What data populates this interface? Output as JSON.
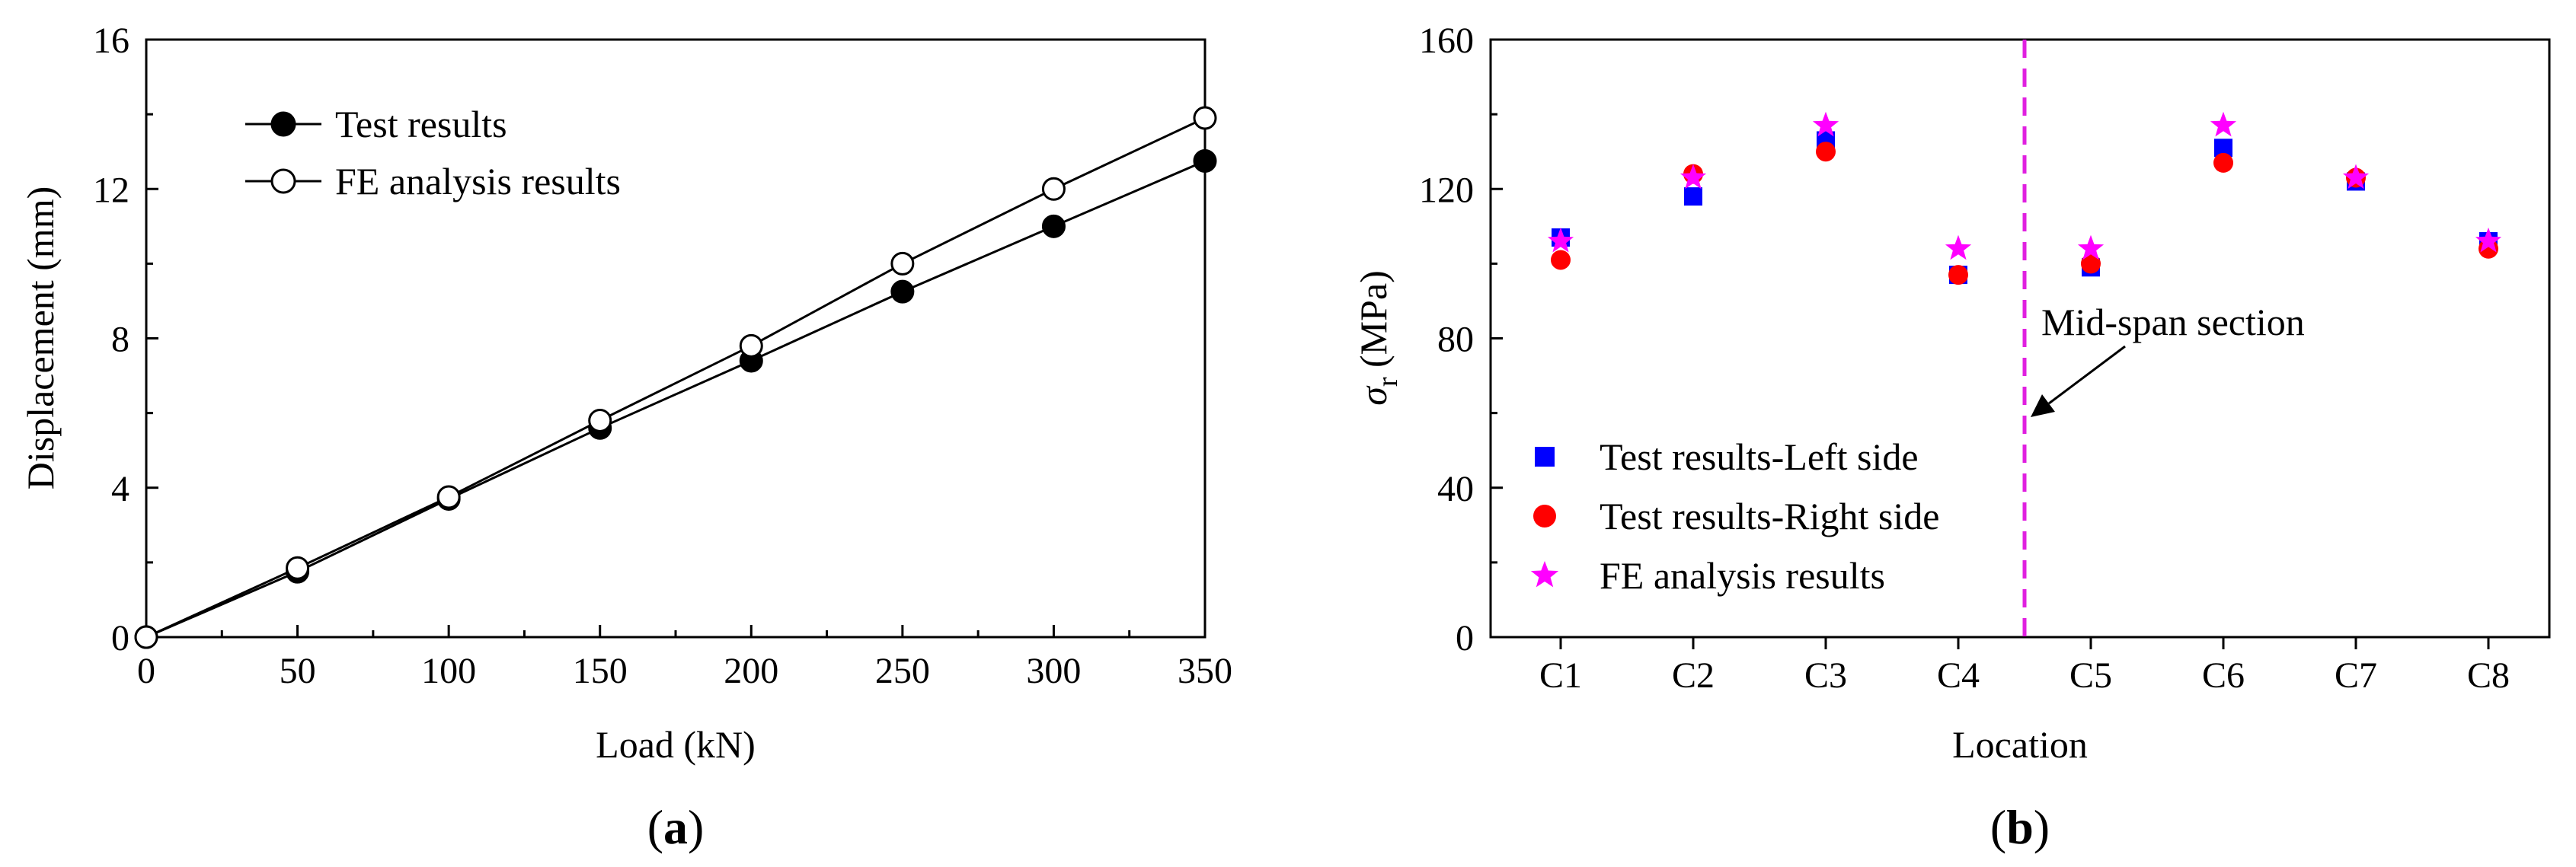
{
  "chart_data": [
    {
      "type": "line",
      "panel_label": {
        "open": "(",
        "letter": "a",
        "close": ")"
      },
      "xlabel": "Load (kN)",
      "ylabel": "Displacement (mm)",
      "xlim": [
        0,
        350
      ],
      "ylim": [
        0,
        16
      ],
      "xticks": [
        0,
        50,
        100,
        150,
        200,
        250,
        300,
        350
      ],
      "yticks": [
        0,
        4,
        8,
        12,
        16
      ],
      "legend_position": "top-left",
      "series": [
        {
          "name": "Test results",
          "marker": "filled-circle",
          "color": "#000000",
          "x": [
            0,
            50,
            100,
            150,
            200,
            250,
            300,
            350
          ],
          "y": [
            0,
            1.75,
            3.7,
            5.6,
            7.4,
            9.25,
            11.0,
            12.75
          ]
        },
        {
          "name": "FE analysis results",
          "marker": "open-circle",
          "color": "#000000",
          "x": [
            0,
            50,
            100,
            150,
            200,
            250,
            300,
            350
          ],
          "y": [
            0,
            1.85,
            3.75,
            5.8,
            7.8,
            10.0,
            12.0,
            13.9
          ]
        }
      ]
    },
    {
      "type": "scatter",
      "panel_label": {
        "open": "(",
        "letter": "b",
        "close": ")"
      },
      "xlabel": "Location",
      "ylabel_symbol": "σ",
      "ylabel_subscript": "r",
      "ylabel_unit": " (MPa)",
      "ylim": [
        0,
        160
      ],
      "yticks": [
        0,
        40,
        80,
        120,
        160
      ],
      "categories": [
        "C1",
        "C2",
        "C3",
        "C4",
        "C5",
        "C6",
        "C7",
        "C8"
      ],
      "legend_position": "bottom-left",
      "series": [
        {
          "name": "Test results-Left side",
          "marker": "square",
          "color": "#0000ff",
          "values": [
            107,
            118,
            133,
            97,
            99,
            131,
            122,
            106
          ]
        },
        {
          "name": "Test results-Right side",
          "marker": "circle",
          "color": "#ff0000",
          "values": [
            101,
            124,
            130,
            97,
            100,
            127,
            123,
            104
          ]
        },
        {
          "name": "FE analysis results",
          "marker": "star",
          "color": "#ff00ff",
          "values": [
            106,
            123,
            137,
            104,
            104,
            137,
            123,
            106
          ]
        }
      ],
      "annotation": {
        "text": "Mid-span section",
        "divider_between": [
          "C4",
          "C5"
        ],
        "divider_color": "#e020e0"
      }
    }
  ]
}
